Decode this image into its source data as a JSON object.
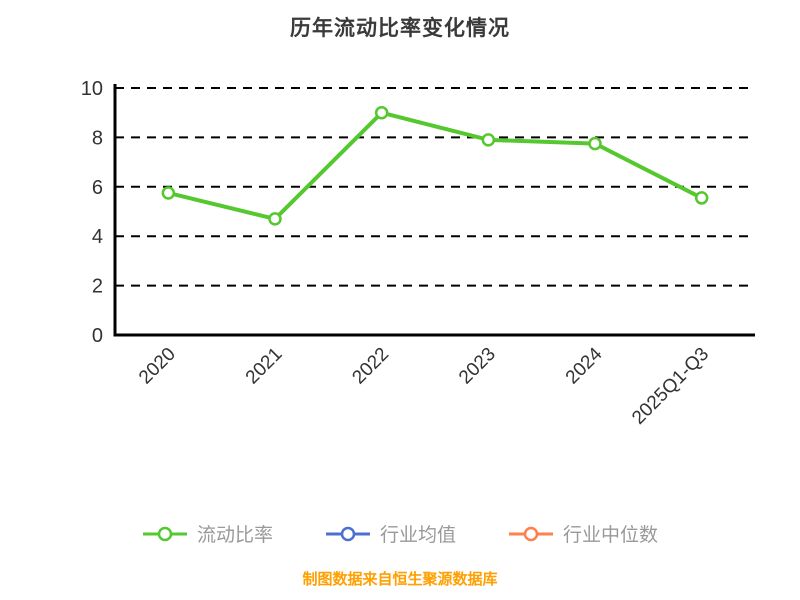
{
  "footer_note": "制图数据来自恒生聚源数据库",
  "colors": {
    "title_text": "#3a3a3a",
    "axis": "#000000",
    "grid": "#000000",
    "tick_label": "#333333",
    "legend_label": "#999999",
    "footer_text": "#ffa000",
    "marker_fill": "#ffffff"
  },
  "chart_data": {
    "type": "line",
    "title": "历年流动比率变化情况",
    "xlabel": "",
    "ylabel": "",
    "categories": [
      "2020",
      "2021",
      "2022",
      "2023",
      "2024",
      "2025Q1-Q3"
    ],
    "series": [
      {
        "key": "current-ratio",
        "name": "流动比率",
        "color": "#56c82f",
        "values": [
          5.75,
          4.7,
          9.0,
          7.9,
          7.75,
          5.55
        ]
      },
      {
        "key": "industry-mean",
        "name": "行业均值",
        "color": "#4d6fd0",
        "values": []
      },
      {
        "key": "industry-median",
        "name": "行业中位数",
        "color": "#ff7f4d",
        "values": []
      }
    ],
    "ylim": [
      0,
      10
    ],
    "yticks": [
      0,
      2,
      4,
      6,
      8,
      10
    ],
    "grid": "horizontal-dashed",
    "legend_position": "bottom",
    "x_tick_rotation_deg": 45
  }
}
